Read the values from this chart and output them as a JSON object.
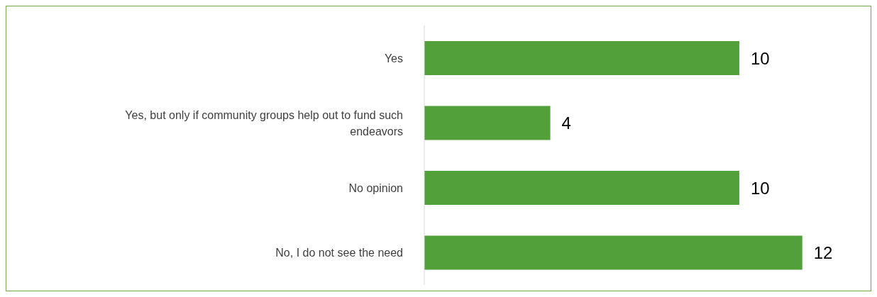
{
  "chart_data": {
    "type": "bar",
    "orientation": "horizontal",
    "categories": [
      "Yes",
      "Yes, but only if community groups help out to fund such endeavors",
      "No opinion",
      "No, I do not see the need"
    ],
    "values": [
      10,
      4,
      10,
      12
    ],
    "color": "#52a03a",
    "data_labels": true
  }
}
